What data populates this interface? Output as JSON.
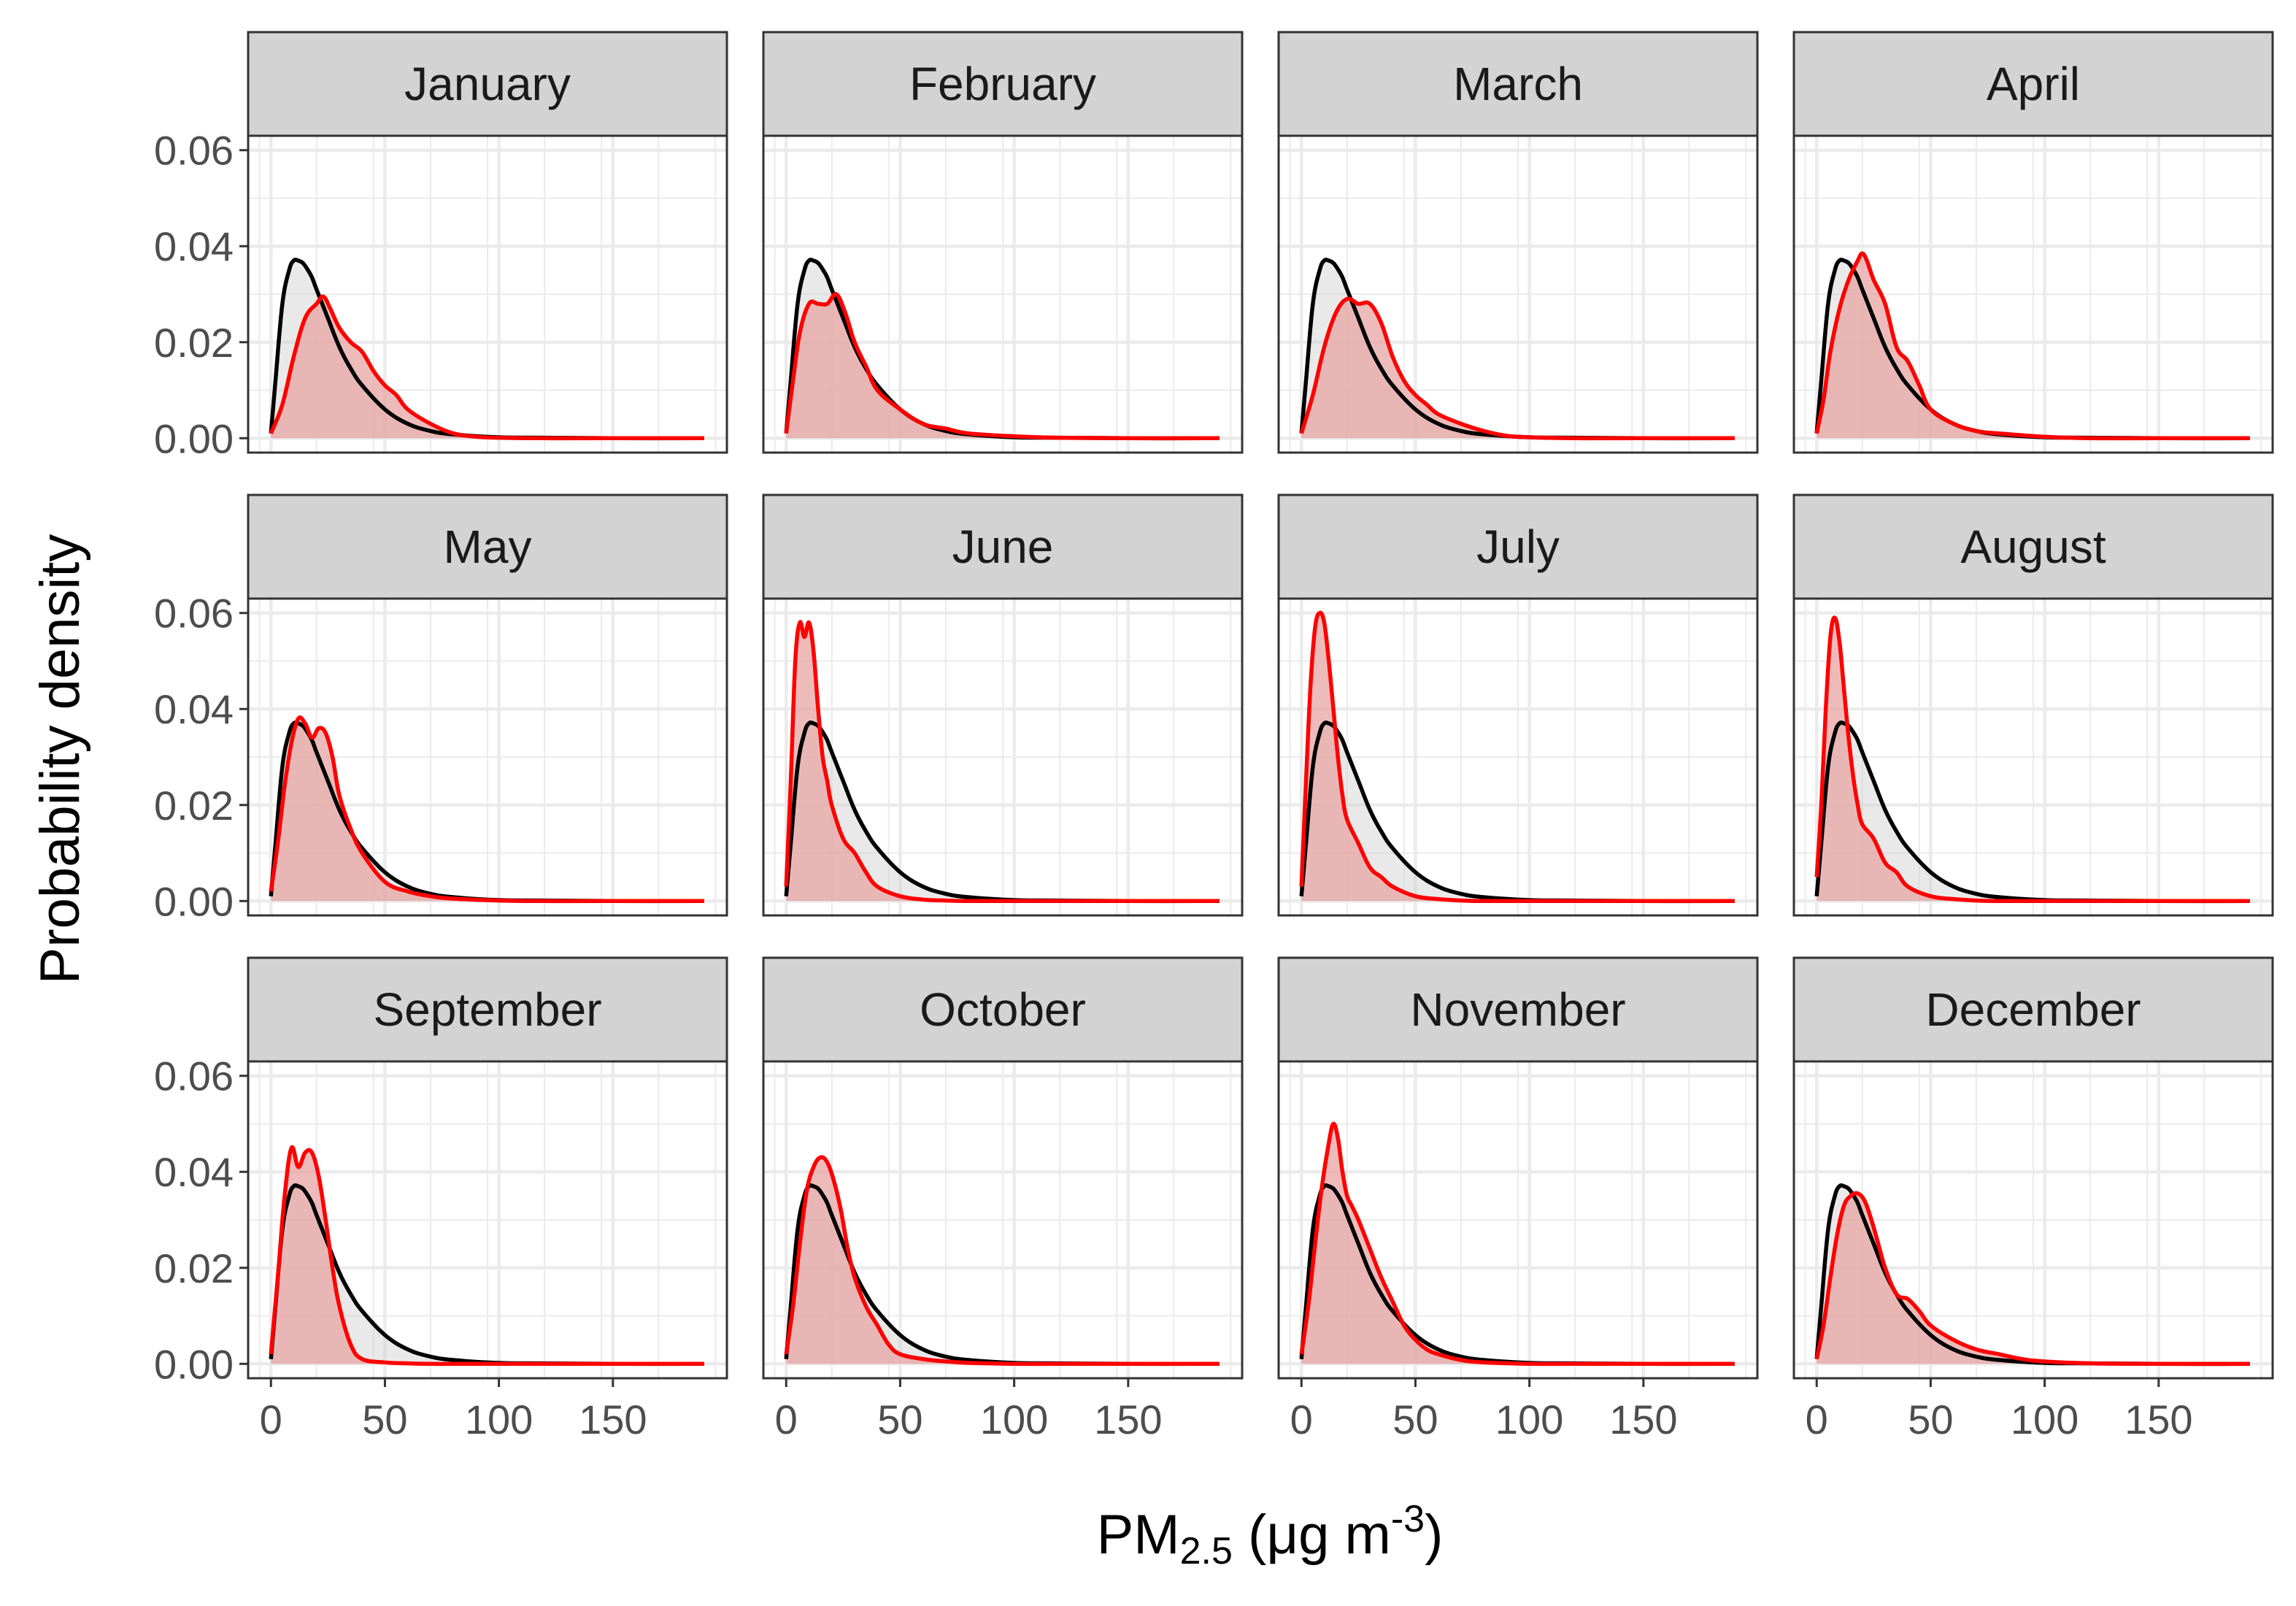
{
  "chart_data": {
    "type": "area",
    "xlabel": {
      "main": "PM",
      "sub": "2.5",
      "unit_pre": " (μg m",
      "unit_sup": "-3",
      "unit_post": ")"
    },
    "ylabel": "Probability density",
    "xlim": [
      -10,
      200
    ],
    "ylim": [
      -0.003,
      0.063
    ],
    "x_ticks": [
      0,
      50,
      100,
      150
    ],
    "y_ticks": [
      0.0,
      0.02,
      0.04,
      0.06
    ],
    "y_tick_labels": [
      "0.00",
      "0.02",
      "0.04",
      "0.06"
    ],
    "facets": {
      "columns": 4,
      "rows": 3
    },
    "grid": true,
    "colors": {
      "reference_line": "#000000",
      "monthly_line": "#ff0000",
      "monthly_fill": "#e8a4a4",
      "reference_fill": "#cfcfcf",
      "strip_bg": "#d3d3d3",
      "panel_border": "#333333",
      "grid": "#ebebeb"
    },
    "reference_curve": {
      "x": [
        0,
        2,
        5,
        8,
        10,
        12,
        14,
        16,
        18,
        20,
        25,
        30,
        35,
        40,
        50,
        60,
        70,
        80,
        100,
        120,
        150,
        190
      ],
      "y": [
        0.001,
        0.012,
        0.028,
        0.035,
        0.037,
        0.037,
        0.0365,
        0.0352,
        0.0335,
        0.031,
        0.025,
        0.019,
        0.0145,
        0.011,
        0.006,
        0.003,
        0.0015,
        0.0008,
        0.0002,
        0.0001,
        0,
        0
      ]
    },
    "series": [
      {
        "name": "January",
        "x": [
          0,
          5,
          10,
          15,
          20,
          23,
          26,
          30,
          35,
          40,
          45,
          50,
          55,
          60,
          70,
          80,
          90,
          100,
          120,
          150,
          190
        ],
        "y": [
          0.001,
          0.007,
          0.017,
          0.025,
          0.028,
          0.0295,
          0.027,
          0.023,
          0.02,
          0.018,
          0.014,
          0.011,
          0.009,
          0.006,
          0.003,
          0.001,
          0.0003,
          0.0001,
          0,
          0,
          0
        ]
      },
      {
        "name": "February",
        "x": [
          0,
          3,
          6,
          10,
          14,
          18,
          22,
          26,
          30,
          35,
          40,
          50,
          60,
          70,
          80,
          100,
          120,
          150,
          190
        ],
        "y": [
          0.001,
          0.012,
          0.022,
          0.028,
          0.028,
          0.028,
          0.03,
          0.026,
          0.02,
          0.015,
          0.01,
          0.006,
          0.003,
          0.002,
          0.001,
          0.0004,
          0.0001,
          0,
          0
        ]
      },
      {
        "name": "March",
        "x": [
          0,
          5,
          10,
          15,
          20,
          25,
          30,
          35,
          40,
          45,
          50,
          55,
          60,
          70,
          80,
          90,
          100,
          120,
          150,
          190
        ],
        "y": [
          0.001,
          0.009,
          0.019,
          0.026,
          0.029,
          0.028,
          0.028,
          0.024,
          0.017,
          0.012,
          0.009,
          0.007,
          0.005,
          0.003,
          0.0015,
          0.0005,
          0.0002,
          0,
          0,
          0
        ]
      },
      {
        "name": "April",
        "x": [
          0,
          3,
          6,
          10,
          14,
          18,
          20,
          22,
          25,
          30,
          35,
          40,
          45,
          50,
          60,
          70,
          80,
          100,
          120,
          150,
          190
        ],
        "y": [
          0.001,
          0.008,
          0.018,
          0.027,
          0.033,
          0.037,
          0.0385,
          0.037,
          0.033,
          0.028,
          0.019,
          0.016,
          0.011,
          0.006,
          0.003,
          0.0015,
          0.001,
          0.0003,
          0,
          0,
          0
        ]
      },
      {
        "name": "May",
        "x": [
          0,
          3,
          6,
          9,
          12,
          15,
          18,
          21,
          24,
          27,
          30,
          35,
          40,
          50,
          60,
          70,
          80,
          100,
          120,
          150,
          190
        ],
        "y": [
          0.002,
          0.012,
          0.024,
          0.033,
          0.038,
          0.037,
          0.034,
          0.036,
          0.035,
          0.03,
          0.022,
          0.015,
          0.01,
          0.004,
          0.002,
          0.001,
          0.0005,
          0.0001,
          0,
          0,
          0
        ]
      },
      {
        "name": "June",
        "x": [
          0,
          2,
          4,
          6,
          8,
          10,
          12,
          14,
          16,
          18,
          20,
          25,
          30,
          35,
          40,
          50,
          60,
          70,
          80,
          100,
          120,
          150,
          190
        ],
        "y": [
          0.003,
          0.025,
          0.05,
          0.058,
          0.055,
          0.058,
          0.052,
          0.04,
          0.03,
          0.025,
          0.02,
          0.013,
          0.01,
          0.006,
          0.003,
          0.001,
          0.0003,
          0.0001,
          0,
          0,
          0,
          0,
          0
        ]
      },
      {
        "name": "July",
        "x": [
          0,
          2,
          4,
          6,
          8,
          10,
          12,
          14,
          16,
          18,
          20,
          25,
          30,
          35,
          40,
          50,
          60,
          70,
          80,
          100,
          120,
          150,
          190
        ],
        "y": [
          0.003,
          0.025,
          0.045,
          0.057,
          0.06,
          0.058,
          0.05,
          0.04,
          0.03,
          0.022,
          0.017,
          0.012,
          0.007,
          0.005,
          0.003,
          0.001,
          0.0004,
          0.0001,
          0,
          0,
          0,
          0,
          0
        ]
      },
      {
        "name": "August",
        "x": [
          0,
          2,
          4,
          6,
          8,
          10,
          12,
          14,
          16,
          18,
          20,
          25,
          30,
          35,
          40,
          50,
          60,
          70,
          80,
          100,
          120,
          150,
          190
        ],
        "y": [
          0.005,
          0.02,
          0.04,
          0.055,
          0.059,
          0.054,
          0.044,
          0.034,
          0.026,
          0.02,
          0.016,
          0.013,
          0.008,
          0.006,
          0.003,
          0.001,
          0.0004,
          0.0001,
          0,
          0,
          0,
          0,
          0
        ]
      },
      {
        "name": "September",
        "x": [
          0,
          3,
          6,
          9,
          12,
          15,
          18,
          21,
          24,
          27,
          30,
          35,
          40,
          50,
          60,
          70,
          80,
          100,
          120,
          150,
          190
        ],
        "y": [
          0.002,
          0.018,
          0.035,
          0.045,
          0.041,
          0.044,
          0.044,
          0.039,
          0.03,
          0.02,
          0.012,
          0.004,
          0.001,
          0.0003,
          0.0001,
          0,
          0,
          0,
          0,
          0,
          0
        ]
      },
      {
        "name": "October",
        "x": [
          0,
          3,
          6,
          9,
          12,
          15,
          18,
          21,
          24,
          27,
          30,
          35,
          40,
          45,
          50,
          60,
          70,
          80,
          100,
          120,
          150,
          190
        ],
        "y": [
          0.002,
          0.012,
          0.025,
          0.036,
          0.041,
          0.043,
          0.042,
          0.038,
          0.032,
          0.024,
          0.018,
          0.012,
          0.008,
          0.004,
          0.002,
          0.001,
          0.0005,
          0.0002,
          0,
          0,
          0,
          0
        ]
      },
      {
        "name": "November",
        "x": [
          0,
          3,
          6,
          9,
          12,
          14,
          16,
          18,
          20,
          22,
          25,
          30,
          35,
          40,
          45,
          50,
          55,
          60,
          70,
          80,
          100,
          120,
          150,
          190
        ],
        "y": [
          0.002,
          0.012,
          0.025,
          0.037,
          0.046,
          0.05,
          0.047,
          0.04,
          0.035,
          0.033,
          0.03,
          0.024,
          0.018,
          0.013,
          0.008,
          0.005,
          0.003,
          0.002,
          0.0008,
          0.0003,
          0,
          0,
          0,
          0
        ]
      },
      {
        "name": "December",
        "x": [
          0,
          3,
          6,
          9,
          12,
          15,
          18,
          21,
          24,
          27,
          30,
          35,
          40,
          45,
          50,
          60,
          70,
          80,
          90,
          100,
          120,
          150,
          190
        ],
        "y": [
          0.001,
          0.008,
          0.018,
          0.027,
          0.033,
          0.035,
          0.0355,
          0.034,
          0.03,
          0.025,
          0.02,
          0.0145,
          0.0135,
          0.011,
          0.008,
          0.005,
          0.003,
          0.002,
          0.001,
          0.0005,
          0.0001,
          0,
          0
        ]
      }
    ]
  }
}
